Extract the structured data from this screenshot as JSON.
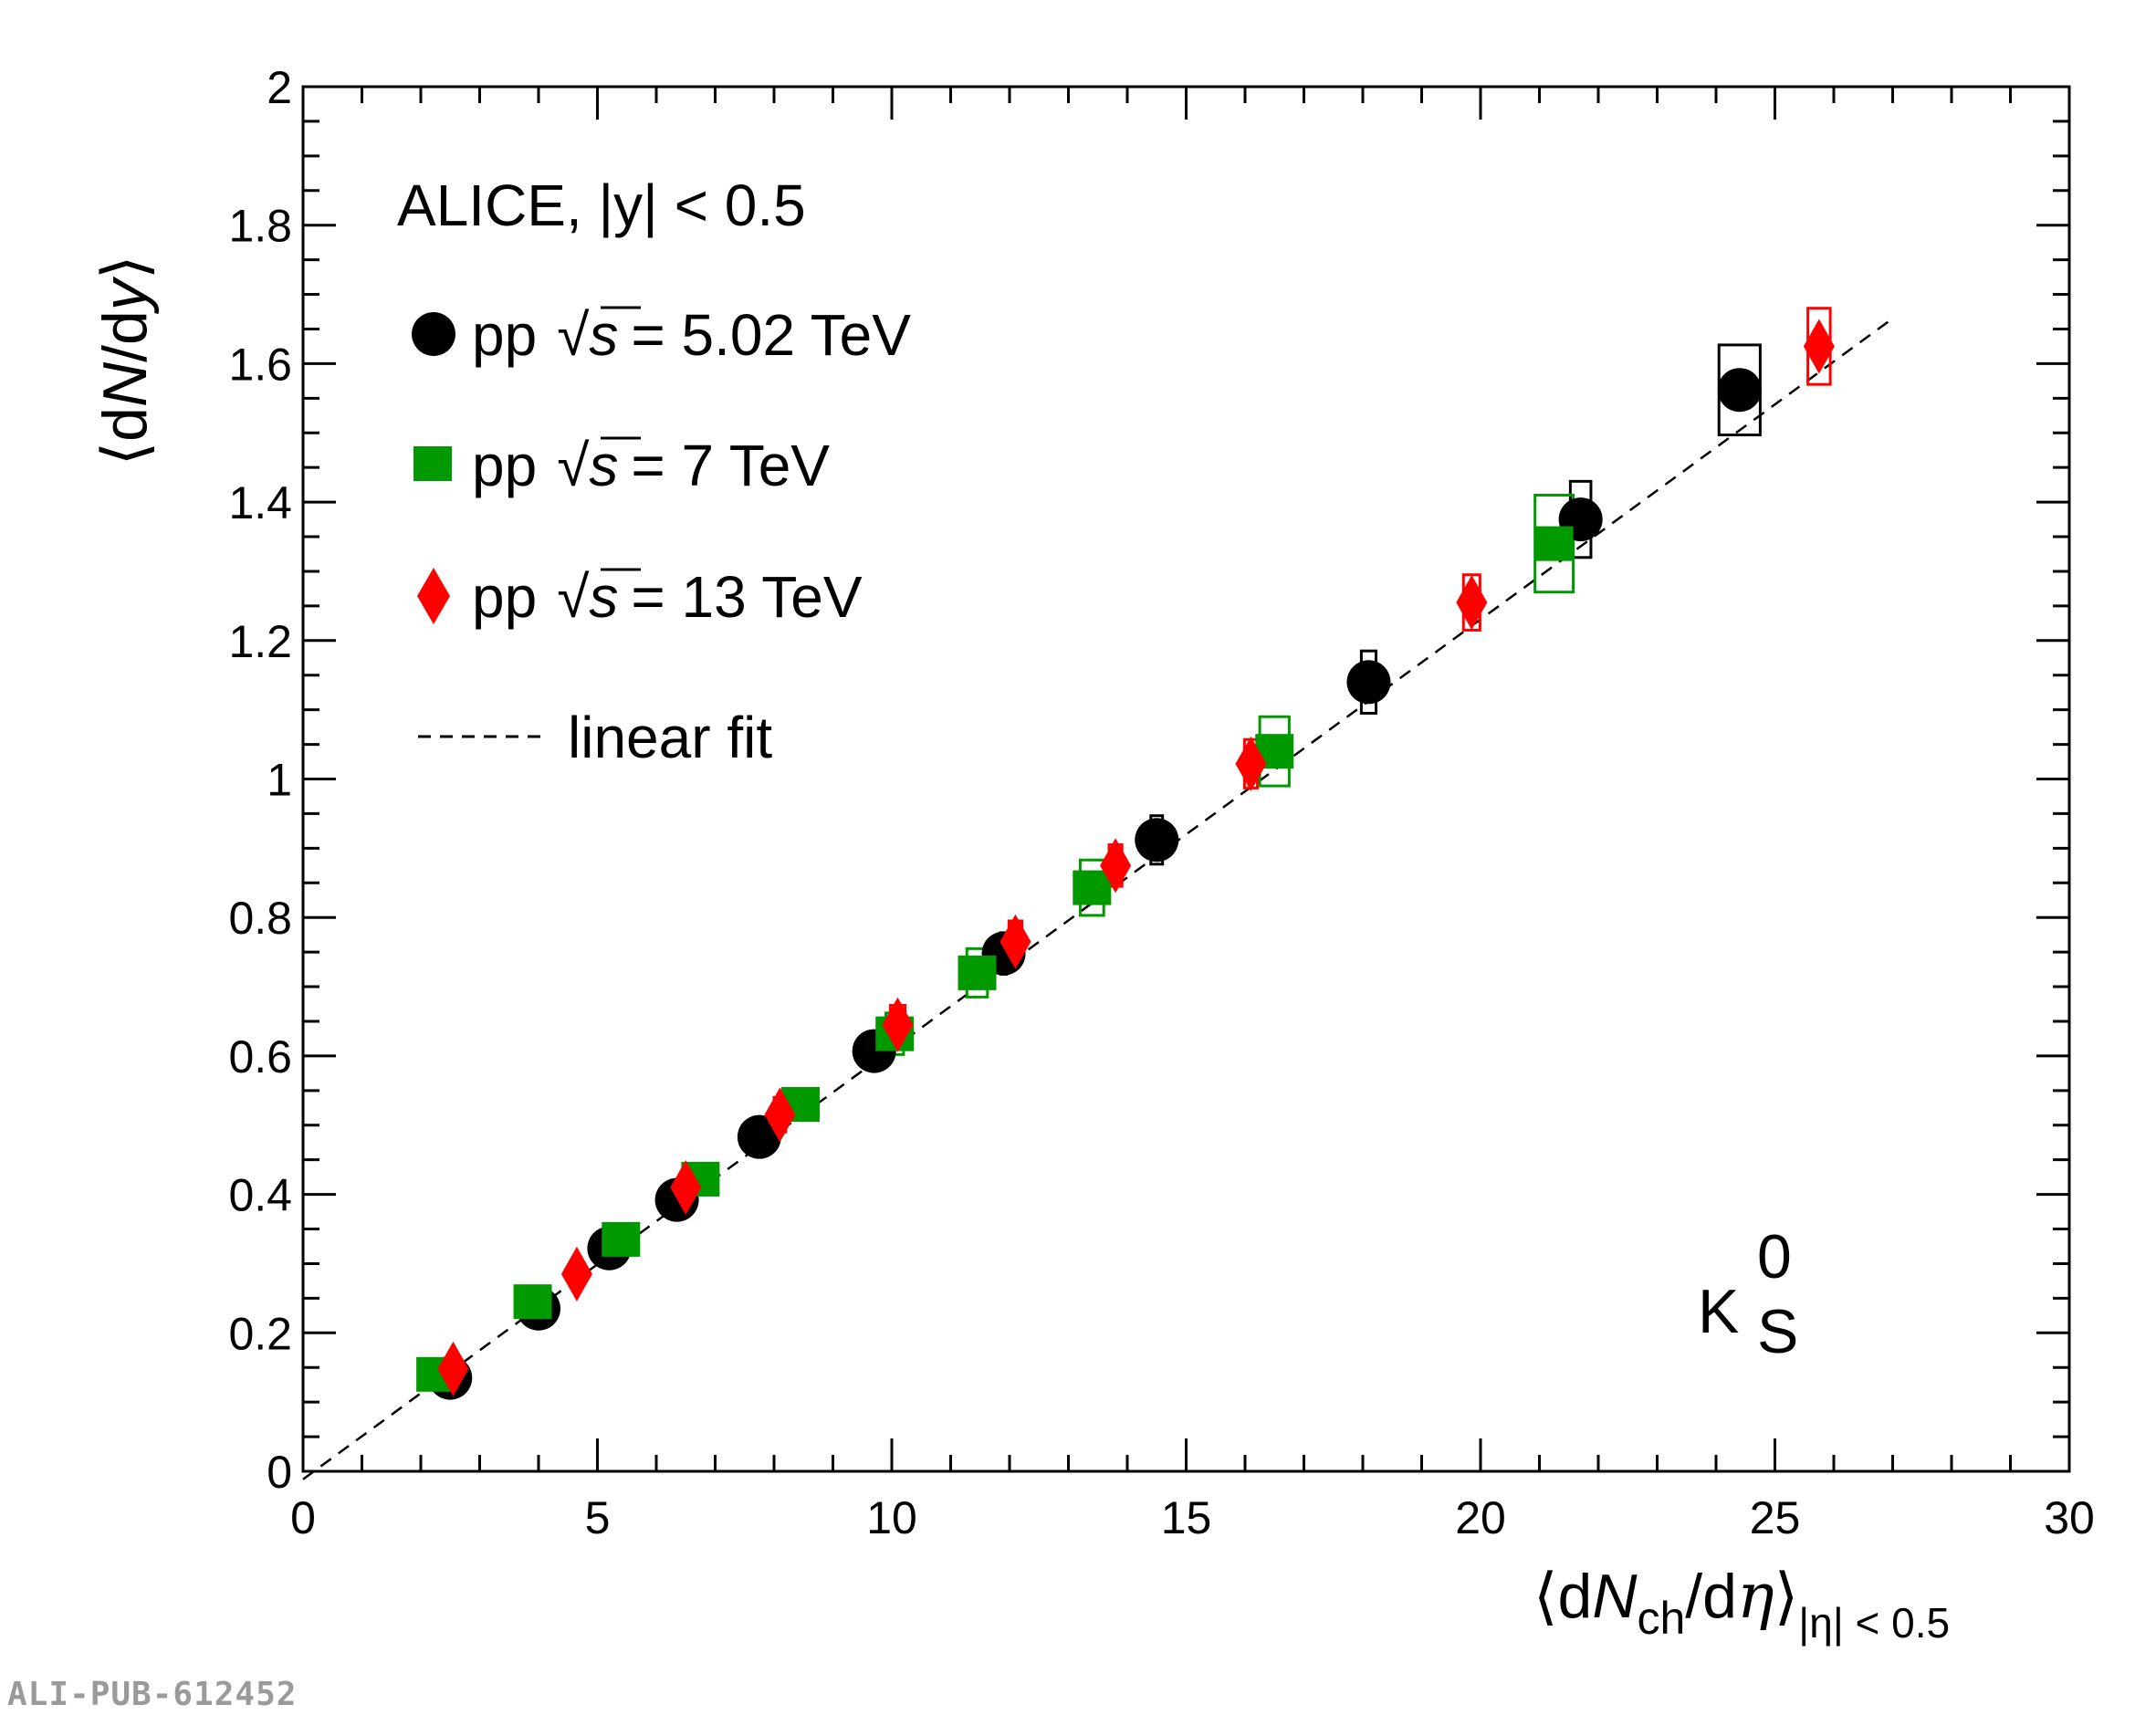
{
  "chart_data": {
    "type": "scatter",
    "x": {
      "label_prefix": "⟨d",
      "label_N": "N",
      "label_sub": "ch",
      "label_mid": "/d",
      "label_eta": "η",
      "label_close": "⟩",
      "label_range": "|η| < 0.5",
      "lim": [
        0,
        30
      ],
      "ticks": [
        "0",
        "5",
        "10",
        "15",
        "20",
        "25",
        "30"
      ]
    },
    "y": {
      "label_prefix": "⟨d",
      "label_N": "N",
      "label_mid": "/d",
      "label_y": "y",
      "label_close": "⟩",
      "lim": [
        0,
        2
      ],
      "ticks": [
        "0",
        "0.2",
        "0.4",
        "0.6",
        "0.8",
        "1",
        "1.2",
        "1.4",
        "1.6",
        "1.8",
        "2"
      ]
    },
    "header": "ALICE, |y| < 0.5",
    "particle": {
      "base": "K",
      "sup": "0",
      "sub": "S"
    },
    "series": [
      {
        "name": "5.02 TeV",
        "label_pp": "pp",
        "label_sqrt": "√",
        "label_s": "s",
        "label_rest": "= 5.02 TeV",
        "marker": "circle",
        "color": "#000000",
        "points": [
          [
            2.5,
            0.135,
            0.05,
            0.012
          ],
          [
            4.0,
            0.235,
            0.05,
            0.015
          ],
          [
            5.2,
            0.322,
            0.06,
            0.015
          ],
          [
            6.35,
            0.392,
            0.07,
            0.018
          ],
          [
            7.75,
            0.483,
            0.08,
            0.02
          ],
          [
            9.7,
            0.607,
            0.09,
            0.02
          ],
          [
            11.9,
            0.748,
            0.1,
            0.03
          ],
          [
            14.5,
            0.912,
            0.2,
            0.035
          ],
          [
            18.1,
            1.14,
            0.25,
            0.045
          ],
          [
            21.7,
            1.375,
            0.35,
            0.055
          ],
          [
            24.4,
            1.562,
            0.7,
            0.065
          ]
        ]
      },
      {
        "name": "7 TeV",
        "label_pp": "pp",
        "label_sqrt": "√",
        "label_s": "s",
        "label_rest": "= 7 TeV",
        "marker": "square",
        "color": "#009900",
        "points": [
          [
            2.25,
            0.14,
            0.05,
            0.012
          ],
          [
            3.9,
            0.245,
            0.05,
            0.015
          ],
          [
            5.4,
            0.335,
            0.05,
            0.015
          ],
          [
            6.75,
            0.422,
            0.05,
            0.017
          ],
          [
            8.45,
            0.53,
            0.05,
            0.02
          ],
          [
            10.05,
            0.632,
            0.3,
            0.03
          ],
          [
            11.45,
            0.72,
            0.35,
            0.035
          ],
          [
            13.4,
            0.843,
            0.4,
            0.04
          ],
          [
            16.5,
            1.04,
            0.5,
            0.05
          ],
          [
            21.25,
            1.34,
            0.65,
            0.07
          ]
        ]
      },
      {
        "name": "13 TeV",
        "label_pp": "pp",
        "label_sqrt": "√",
        "label_s": "s",
        "label_rest": "= 13 TeV",
        "marker": "diamond",
        "color": "#ff0000",
        "points": [
          [
            2.55,
            0.148,
            0.05,
            0.012
          ],
          [
            4.65,
            0.285,
            0.05,
            0.014
          ],
          [
            6.5,
            0.41,
            0.15,
            0.02
          ],
          [
            8.1,
            0.515,
            0.2,
            0.025
          ],
          [
            10.1,
            0.645,
            0.25,
            0.028
          ],
          [
            12.1,
            0.765,
            0.22,
            0.03
          ],
          [
            13.8,
            0.875,
            0.22,
            0.03
          ],
          [
            16.1,
            1.022,
            0.22,
            0.035
          ],
          [
            19.85,
            1.255,
            0.28,
            0.04
          ],
          [
            25.75,
            1.625,
            0.38,
            0.055
          ]
        ]
      }
    ],
    "fit": {
      "label": "linear fit",
      "slope": 0.0621,
      "intercept": -0.0115,
      "x_range": [
        0,
        27
      ]
    }
  },
  "watermark": "ALI-PUB-612452"
}
